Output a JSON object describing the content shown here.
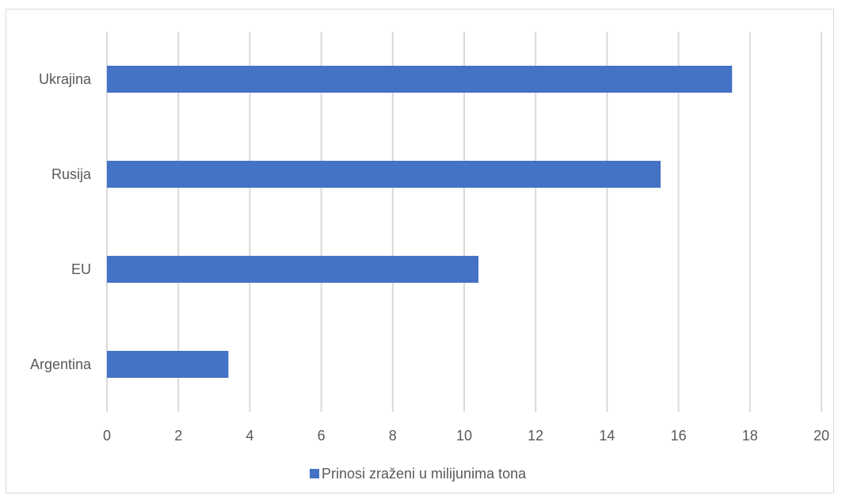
{
  "chart_data": {
    "type": "bar",
    "orientation": "horizontal",
    "categories": [
      "Ukrajina",
      "Rusija",
      "EU",
      "Argentina"
    ],
    "series": [
      {
        "name": "Prinosi zraženi u milijunima tona",
        "values": [
          17.5,
          15.5,
          10.4,
          3.4
        ],
        "color": "#4472c4"
      }
    ],
    "xlim": [
      0,
      20
    ],
    "xticks": [
      "0",
      "2",
      "4",
      "6",
      "8",
      "10",
      "12",
      "14",
      "16",
      "18",
      "20"
    ],
    "grid": true,
    "gridColor": "#d9d9d9",
    "legend": "bottom"
  }
}
